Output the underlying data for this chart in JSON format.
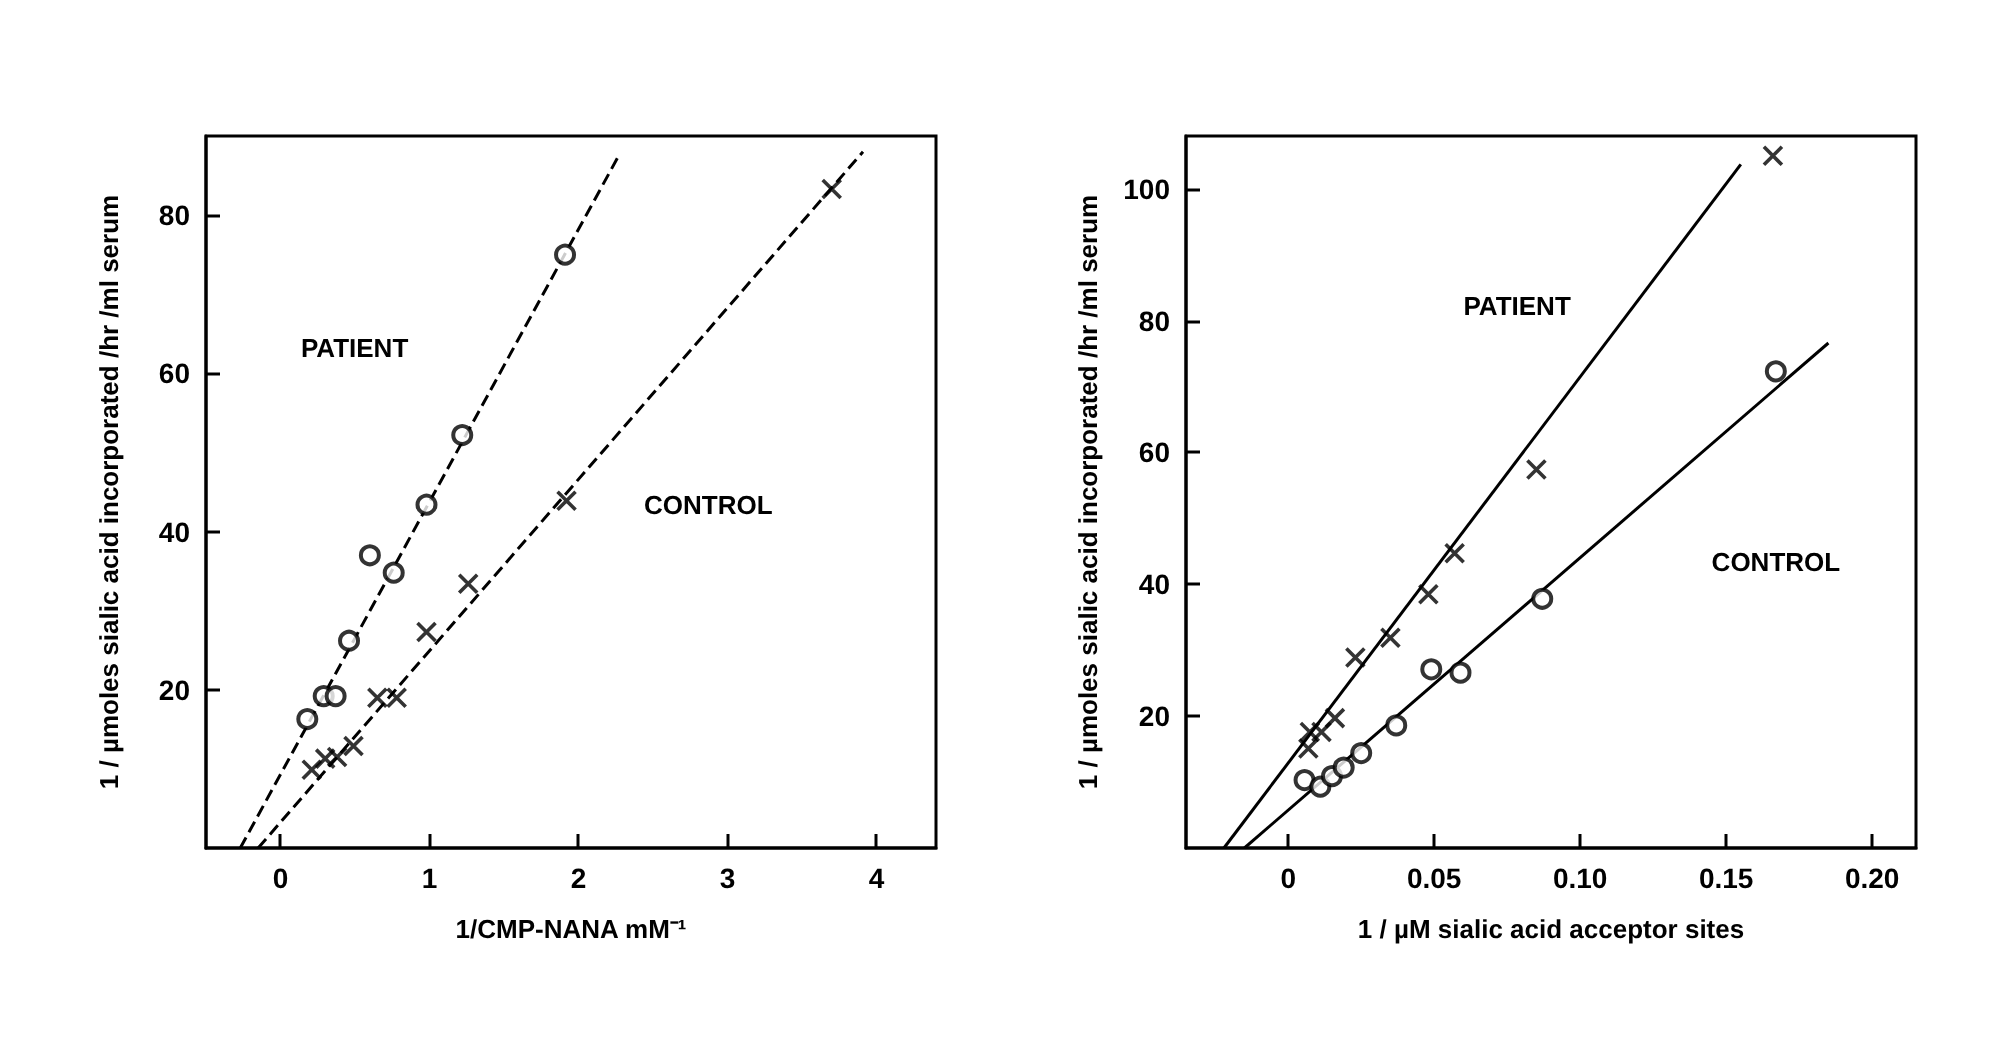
{
  "chart_data": [
    {
      "type": "scatter",
      "xlabel": "1/CMP-NANA mM⁻¹",
      "ylabel": "1 / µmoles sialic acid incorporated /hr /ml serum",
      "xlim": [
        -0.5,
        4.4
      ],
      "ylim": [
        0,
        90
      ],
      "xticks": [
        0,
        1,
        2,
        3,
        4
      ],
      "yticks": [
        20,
        40,
        60,
        80
      ],
      "grid": false,
      "series": [
        {
          "color": "#000000",
          "marker": "circle",
          "x": [
            0.18,
            0.29,
            0.37,
            0.46,
            0.6,
            0.76,
            0.98,
            1.22,
            1.91
          ],
          "values": [
            16.3,
            19.2,
            19.2,
            26.2,
            37,
            34.8,
            43.4,
            52.2,
            75
          ]
        },
        {
          "color": "#000000",
          "marker": "cross",
          "x": [
            0.21,
            0.3,
            0.38,
            0.49,
            0.65,
            0.78,
            0.98,
            1.26,
            1.92,
            3.7
          ],
          "values": [
            9.9,
            11.3,
            11.5,
            12.9,
            19,
            19,
            27.3,
            33.4,
            43.9,
            83.3
          ]
        },
        {
          "type": "line",
          "color": "#000000",
          "line_style": "dashed",
          "x": [
            -0.27,
            2.27
          ],
          "values": [
            0,
            87.5
          ]
        },
        {
          "type": "line",
          "color": "#000000",
          "line_style": "dashed",
          "x": [
            -0.15,
            3.91
          ],
          "values": [
            0,
            88
          ]
        }
      ],
      "annotations": [
        "PATIENT",
        "CONTROL"
      ]
    },
    {
      "type": "scatter",
      "xlabel": "1 / µM sialic acid acceptor sites",
      "ylabel": "1 / µmoles sialic acid incorporated /hr /ml serum",
      "xlim": [
        -0.035,
        0.215
      ],
      "ylim": [
        0,
        108
      ],
      "xticks": [
        0,
        0.05,
        {
          "value": 0.1,
          "label": "0.10"
        },
        0.15,
        {
          "value": 0.2,
          "label": "0.20"
        }
      ],
      "yticks": [
        20,
        40,
        60,
        80,
        100
      ],
      "grid": false,
      "series": [
        {
          "color": "#000000",
          "marker": "cross",
          "x": [
            0.0069,
            0.0074,
            0.0114,
            0.016,
            0.023,
            0.035,
            0.048,
            0.057,
            0.085,
            0.166
          ],
          "values": [
            15.1,
            17.6,
            17.6,
            19.7,
            28.9,
            31.9,
            38.5,
            44.7,
            57.4,
            105
          ]
        },
        {
          "color": "#000000",
          "marker": "circle",
          "x": [
            0.0056,
            0.011,
            0.015,
            0.019,
            0.025,
            0.037,
            0.049,
            0.059,
            0.087,
            0.167
          ],
          "values": [
            10.3,
            9.3,
            10.9,
            12.2,
            14.4,
            18.6,
            27.1,
            26.6,
            37.8,
            72.3
          ]
        },
        {
          "type": "line",
          "color": "#000000",
          "line_style": "solid",
          "x": [
            -0.022,
            0.155
          ],
          "values": [
            0,
            103.7
          ]
        },
        {
          "type": "line",
          "color": "#000000",
          "line_style": "solid",
          "x": [
            -0.015,
            0.185
          ],
          "values": [
            0,
            76.6
          ]
        }
      ],
      "annotations": [
        "PATIENT",
        "CONTROL"
      ]
    }
  ]
}
